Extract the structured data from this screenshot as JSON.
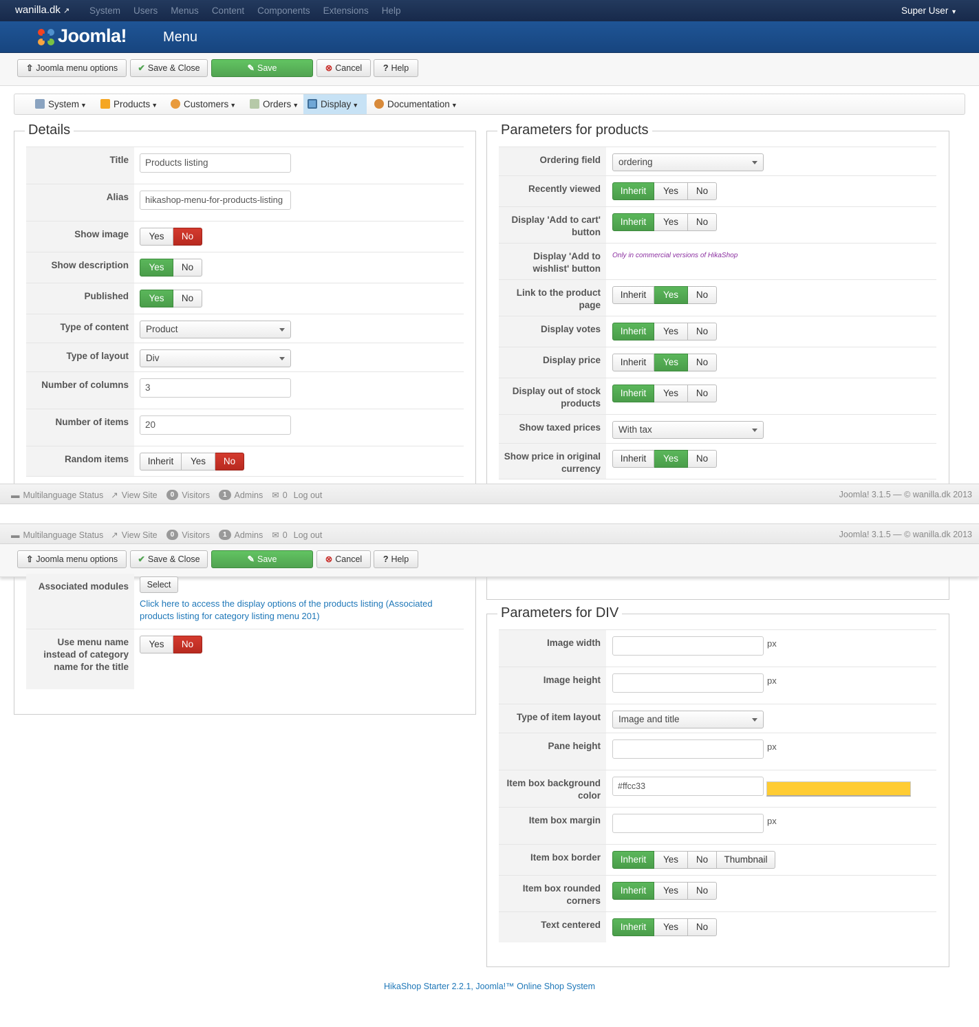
{
  "topnav": {
    "site": "wanilla.dk",
    "site_icon": "external-link-icon",
    "menu": [
      "System",
      "Users",
      "Menus",
      "Content",
      "Components",
      "Extensions",
      "Help"
    ],
    "user": "Super User"
  },
  "header": {
    "logo": "Joomla!",
    "title": "Menu"
  },
  "toolbar": {
    "menu_options": "Joomla menu options",
    "save_close": "Save & Close",
    "save": "Save",
    "cancel": "Cancel",
    "help": "Help"
  },
  "menubar": {
    "items": [
      {
        "label": "System",
        "icon": "tools-icon"
      },
      {
        "label": "Products",
        "icon": "box-icon"
      },
      {
        "label": "Customers",
        "icon": "users-icon"
      },
      {
        "label": "Orders",
        "icon": "orders-icon"
      },
      {
        "label": "Display",
        "icon": "display-icon",
        "active": true
      },
      {
        "label": "Documentation",
        "icon": "help-icon"
      }
    ]
  },
  "details": {
    "legend": "Details",
    "title_label": "Title",
    "title_value": "Products listing",
    "alias_label": "Alias",
    "alias_value": "hikashop-menu-for-products-listing",
    "show_image_label": "Show image",
    "show_description_label": "Show description",
    "published_label": "Published",
    "content_type_label": "Type of content",
    "content_type_value": "Product",
    "layout_type_label": "Type of layout",
    "layout_type_value": "Div",
    "columns_label": "Number of columns",
    "columns_value": "3",
    "items_label": "Number of items",
    "items_value": "20",
    "random_label": "Random items",
    "assoc_label": "Associated modules",
    "assoc_button": "Select",
    "assoc_link": "Click here to access the display options of the products listing (Associated products listing for category listing menu 201)",
    "menu_name_label": "Use menu name instead of category name for the title"
  },
  "params_products": {
    "legend": "Parameters for products",
    "ordering_label": "Ordering field",
    "ordering_value": "ordering",
    "recent_label": "Recently viewed",
    "addcart_label": "Display 'Add to cart' button",
    "wishlist_label": "Display 'Add to wishlist' button",
    "wishlist_note": "Only in commercial versions of HikaShop",
    "link_label": "Link to the product page",
    "votes_label": "Display votes",
    "price_label": "Display price",
    "oos_label": "Display out of stock products",
    "taxed_label": "Show taxed prices",
    "taxed_value": "With tax",
    "orig_label": "Show price in original currency"
  },
  "params_div": {
    "legend": "Parameters for DIV",
    "img_w_label": "Image width",
    "img_h_label": "Image height",
    "item_layout_label": "Type of item layout",
    "item_layout_value": "Image and title",
    "pane_label": "Pane height",
    "bgcolor_label": "Item box background color",
    "bgcolor_value": "#ffcc33",
    "margin_label": "Item box margin",
    "border_label": "Item box border",
    "rounded_label": "Item box rounded corners",
    "centered_label": "Text centered",
    "unit": "px"
  },
  "toggles": {
    "inherit": "Inherit",
    "yes": "Yes",
    "no": "No",
    "thumbnail": "Thumbnail"
  },
  "status": {
    "multilang": "Multilanguage Status",
    "view_site": "View Site",
    "visitors_count": "0",
    "visitors": "Visitors",
    "admins_count": "1",
    "admins": "Admins",
    "messages_count": "0",
    "logout": "Log out",
    "version": "Joomla! 3.1.5 — © wanilla.dk 2013"
  },
  "footer": {
    "text": "HikaShop Starter 2.2.1, Joomla!™ Online Shop System"
  },
  "colors": {
    "swatch": "#ffcc33",
    "brand": "#17457f",
    "success": "#51a351",
    "danger": "#bd362f"
  }
}
